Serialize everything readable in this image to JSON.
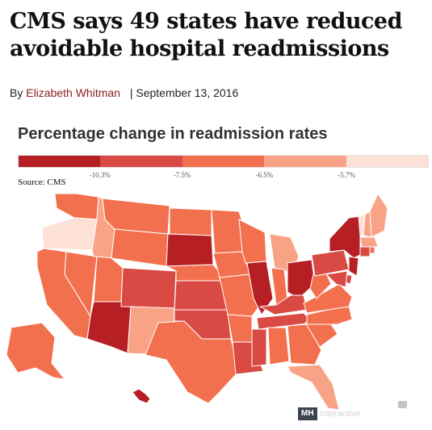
{
  "article": {
    "headline": "CMS says 49 states have reduced avoidable hospital readmissions",
    "byline_prefix": "By",
    "author": "Elizabeth Whitman",
    "date": "| September 13, 2016"
  },
  "chart_data": {
    "type": "choropleth",
    "title": "Percentage change in readmission rates",
    "source": "Source: CMS",
    "legend": {
      "colors": [
        "#b61f24",
        "#d84a43",
        "#f3704f",
        "#f9a386",
        "#fde0d6"
      ],
      "thresholds": [
        "-10.3%",
        "-7.5%",
        "-6.5%",
        "-5.7%"
      ]
    },
    "levels": {
      "WA": 2,
      "OR": 4,
      "CA": 2,
      "NV": 2,
      "ID": 3,
      "MT": 2,
      "WY": 2,
      "UT": 2,
      "AZ": 0,
      "CO": 1,
      "NM": 3,
      "ND": 2,
      "SD": 0,
      "NE": 2,
      "KS": 1,
      "OK": 1,
      "TX": 2,
      "MN": 2,
      "IA": 2,
      "MO": 2,
      "AR": 2,
      "LA": 1,
      "WI": 2,
      "IL": 0,
      "MI": 3,
      "IN": 2,
      "OH": 0,
      "KY": 1,
      "TN": 1,
      "MS": 1,
      "AL": 2,
      "GA": 2,
      "FL": 3,
      "SC": 2,
      "NC": 2,
      "VA": 2,
      "WV": 2,
      "PA": 1,
      "NY": 0,
      "VT": 4,
      "NH": 3,
      "ME": 3,
      "MA": 3,
      "RI": 2,
      "CT": 1,
      "NJ": 0,
      "DE": 1,
      "MD": 1,
      "AK": 2,
      "HI": 0
    }
  },
  "branding": {
    "mark": "MH",
    "word": "Interactive"
  }
}
